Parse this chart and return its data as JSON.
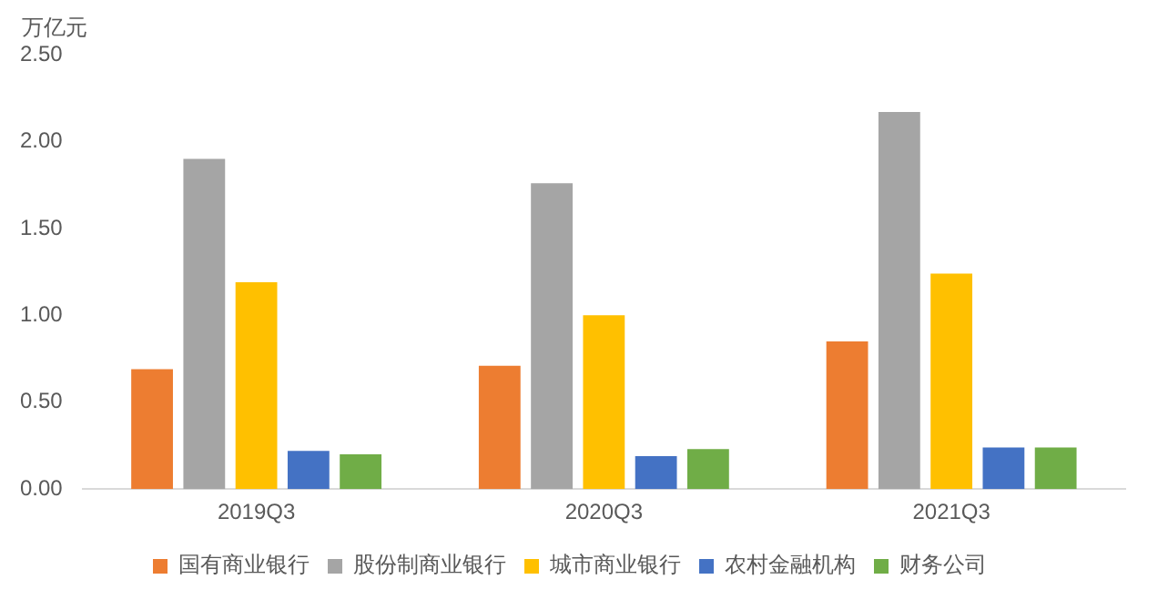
{
  "chart_data": {
    "type": "bar",
    "ylabel": "万亿元",
    "categories": [
      "2019Q3",
      "2020Q3",
      "2021Q3"
    ],
    "series": [
      {
        "name": "国有商业银行",
        "color": "#ed7d31",
        "values": [
          0.69,
          0.71,
          0.85
        ]
      },
      {
        "name": "股份制商业银行",
        "color": "#a5a5a5",
        "values": [
          1.9,
          1.76,
          2.17
        ]
      },
      {
        "name": "城市商业银行",
        "color": "#ffc000",
        "values": [
          1.19,
          1.0,
          1.24
        ]
      },
      {
        "name": "农村金融机构",
        "color": "#4472c4",
        "values": [
          0.22,
          0.19,
          0.24
        ]
      },
      {
        "name": "财务公司",
        "color": "#70ad47",
        "values": [
          0.2,
          0.23,
          0.24
        ]
      }
    ],
    "ylim": [
      0,
      2.5
    ],
    "yticks": [
      {
        "value": 0,
        "label": "0.00"
      },
      {
        "value": 0.5,
        "label": "0.50"
      },
      {
        "value": 1,
        "label": "1.00"
      },
      {
        "value": 1.5,
        "label": "1.50"
      },
      {
        "value": 2,
        "label": "2.00"
      },
      {
        "value": 2.5,
        "label": "2.50"
      }
    ],
    "grid": false,
    "legend": "bottom"
  }
}
